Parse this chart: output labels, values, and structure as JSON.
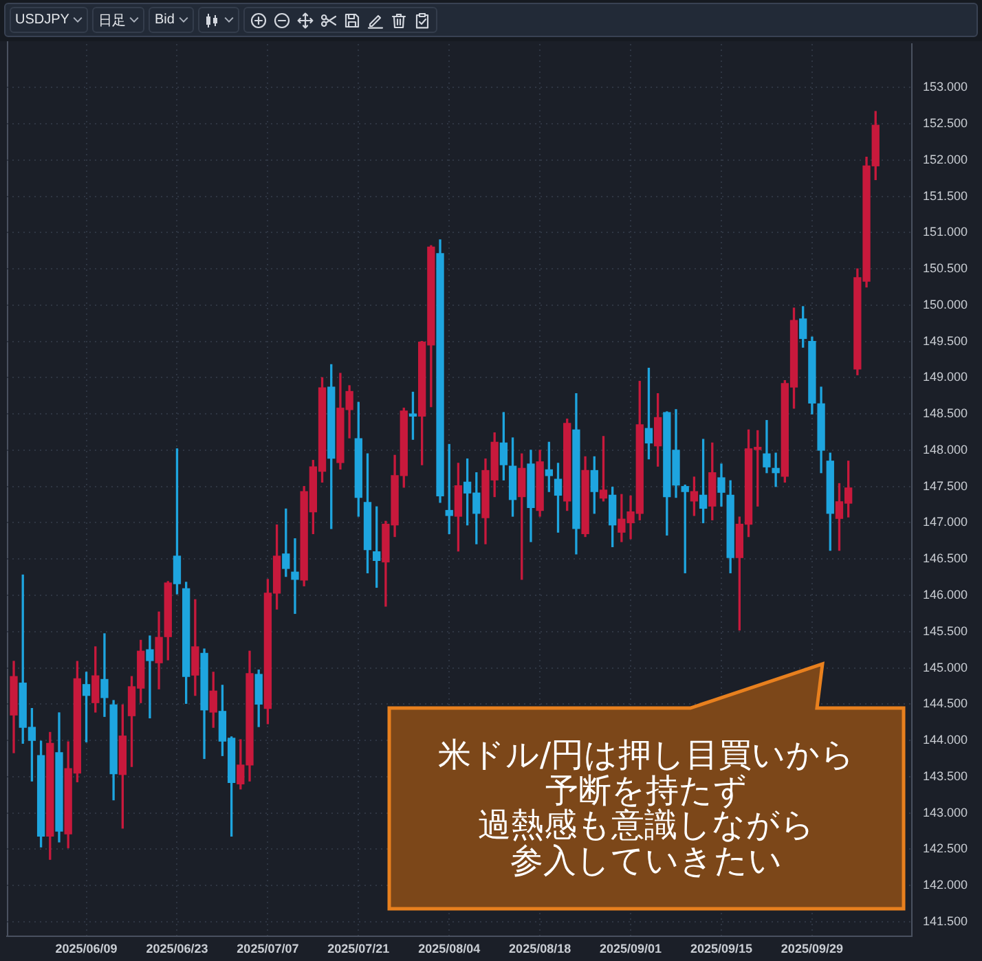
{
  "chart_data": {
    "type": "candlestick",
    "title": "USDJPY",
    "annotations": [
      "日足",
      "Bid",
      "米ドル/円は押し目買いから",
      "予断を持たず",
      "過熱感も意識しながら",
      "参入していきたい"
    ],
    "categories": [
      null,
      null,
      null,
      null,
      null,
      null,
      null,
      null,
      "2025/06/09",
      null,
      null,
      null,
      null,
      null,
      null,
      null,
      null,
      null,
      "2025/06/23",
      null,
      null,
      null,
      null,
      null,
      null,
      null,
      null,
      null,
      "2025/07/07",
      null,
      null,
      null,
      null,
      null,
      null,
      null,
      null,
      null,
      "2025/07/21",
      null,
      null,
      null,
      null,
      null,
      null,
      null,
      null,
      null,
      "2025/08/04",
      null,
      null,
      null,
      null,
      null,
      null,
      null,
      null,
      null,
      "2025/08/18",
      null,
      null,
      null,
      null,
      null,
      null,
      null,
      null,
      null,
      "2025/09/01",
      null,
      null,
      null,
      null,
      null,
      null,
      null,
      null,
      null,
      "2025/09/15",
      null,
      null,
      null,
      null,
      null,
      null,
      null,
      null,
      null,
      "2025/09/29",
      null,
      null,
      null,
      null,
      null,
      null,
      null
    ],
    "ohlc": [
      [
        144.35,
        145.09,
        143.83,
        144.88
      ],
      [
        144.79,
        146.28,
        143.96,
        144.18
      ],
      [
        144.18,
        144.44,
        143.44,
        144.0
      ],
      [
        143.79,
        143.99,
        142.53,
        142.68
      ],
      [
        142.68,
        144.11,
        142.36,
        143.96
      ],
      [
        143.83,
        144.38,
        142.6,
        142.75
      ],
      [
        142.71,
        143.98,
        142.52,
        143.61
      ],
      [
        143.55,
        145.09,
        143.43,
        144.85
      ],
      [
        144.77,
        144.94,
        143.98,
        144.62
      ],
      [
        144.52,
        145.29,
        144.39,
        144.89
      ],
      [
        144.84,
        145.47,
        144.33,
        144.59
      ],
      [
        144.49,
        144.55,
        143.18,
        143.54
      ],
      [
        143.53,
        144.49,
        142.79,
        144.06
      ],
      [
        144.34,
        144.88,
        143.64,
        144.74
      ],
      [
        144.72,
        145.38,
        144.52,
        145.23
      ],
      [
        145.25,
        145.44,
        144.31,
        145.1
      ],
      [
        145.07,
        145.77,
        144.71,
        145.42
      ],
      [
        145.43,
        146.19,
        145.11,
        146.17
      ],
      [
        146.54,
        148.02,
        146.02,
        146.16
      ],
      [
        146.09,
        146.18,
        144.51,
        144.88
      ],
      [
        144.9,
        145.94,
        144.62,
        145.29
      ],
      [
        145.2,
        145.26,
        143.75,
        144.42
      ],
      [
        144.39,
        144.94,
        144.18,
        144.68
      ],
      [
        144.4,
        144.76,
        143.79,
        143.99
      ],
      [
        144.03,
        144.05,
        142.68,
        143.42
      ],
      [
        143.4,
        144.01,
        143.33,
        143.66
      ],
      [
        143.66,
        145.23,
        143.44,
        144.92
      ],
      [
        144.91,
        144.97,
        144.19,
        144.5
      ],
      [
        144.44,
        146.22,
        144.23,
        146.03
      ],
      [
        146.03,
        146.97,
        145.81,
        146.54
      ],
      [
        146.57,
        147.19,
        146.26,
        146.37
      ],
      [
        146.32,
        146.78,
        145.75,
        146.22
      ],
      [
        146.21,
        147.5,
        146.13,
        147.43
      ],
      [
        147.15,
        147.86,
        146.85,
        147.77
      ],
      [
        147.71,
        149.0,
        147.56,
        148.86
      ],
      [
        148.87,
        149.18,
        146.92,
        147.89
      ],
      [
        147.83,
        149.06,
        147.74,
        148.58
      ],
      [
        148.56,
        148.89,
        148.17,
        148.81
      ],
      [
        148.16,
        148.66,
        147.09,
        147.35
      ],
      [
        147.28,
        147.95,
        146.31,
        146.63
      ],
      [
        146.6,
        147.22,
        146.11,
        146.48
      ],
      [
        146.46,
        147.02,
        145.85,
        146.98
      ],
      [
        146.97,
        147.93,
        146.81,
        147.65
      ],
      [
        147.65,
        148.58,
        147.49,
        148.54
      ],
      [
        148.5,
        148.8,
        148.15,
        148.47
      ],
      [
        148.47,
        149.5,
        147.8,
        149.49
      ],
      [
        149.45,
        150.82,
        148.6,
        150.8
      ],
      [
        150.71,
        150.9,
        147.28,
        147.37
      ],
      [
        147.17,
        148.08,
        146.85,
        147.1
      ],
      [
        147.09,
        147.82,
        146.61,
        147.51
      ],
      [
        147.56,
        147.88,
        146.97,
        147.41
      ],
      [
        147.41,
        147.69,
        146.71,
        147.13
      ],
      [
        147.07,
        147.88,
        146.71,
        147.72
      ],
      [
        147.59,
        148.24,
        147.36,
        148.11
      ],
      [
        148.1,
        148.52,
        147.59,
        147.8
      ],
      [
        147.78,
        148.17,
        147.09,
        147.32
      ],
      [
        147.36,
        147.95,
        146.22,
        147.75
      ],
      [
        147.81,
        148.0,
        146.74,
        147.21
      ],
      [
        147.17,
        148.0,
        147.09,
        147.84
      ],
      [
        147.73,
        148.11,
        147.43,
        147.65
      ],
      [
        147.6,
        147.82,
        146.87,
        147.38
      ],
      [
        147.3,
        148.43,
        147.17,
        148.37
      ],
      [
        148.28,
        148.78,
        146.57,
        146.92
      ],
      [
        146.85,
        147.91,
        146.81,
        147.72
      ],
      [
        147.72,
        147.91,
        147.13,
        147.43
      ],
      [
        147.34,
        148.19,
        147.3,
        147.45
      ],
      [
        147.38,
        147.49,
        146.67,
        146.97
      ],
      [
        146.87,
        147.39,
        146.74,
        147.05
      ],
      [
        147.0,
        147.37,
        146.78,
        147.15
      ],
      [
        147.13,
        148.95,
        147.04,
        148.35
      ],
      [
        148.3,
        149.13,
        147.88,
        148.1
      ],
      [
        148.06,
        148.78,
        147.78,
        148.45
      ],
      [
        148.52,
        148.53,
        146.83,
        147.36
      ],
      [
        148.0,
        148.56,
        147.35,
        147.52
      ],
      [
        147.5,
        147.52,
        146.31,
        147.43
      ],
      [
        147.3,
        147.63,
        147.1,
        147.43
      ],
      [
        147.38,
        148.15,
        147.0,
        147.2
      ],
      [
        147.23,
        148.1,
        147.04,
        147.69
      ],
      [
        147.62,
        147.81,
        147.23,
        147.42
      ],
      [
        147.38,
        147.58,
        146.31,
        146.52
      ],
      [
        146.52,
        147.08,
        145.52,
        146.98
      ],
      [
        146.98,
        148.28,
        146.81,
        148.02
      ],
      [
        148.01,
        148.27,
        147.23,
        148.04
      ],
      [
        147.95,
        148.41,
        147.69,
        147.77
      ],
      [
        147.75,
        147.96,
        147.5,
        147.69
      ],
      [
        147.64,
        148.96,
        147.56,
        148.92
      ],
      [
        148.87,
        149.96,
        148.58,
        149.79
      ],
      [
        149.81,
        149.98,
        149.42,
        149.54
      ],
      [
        149.5,
        149.56,
        148.5,
        148.65
      ],
      [
        148.64,
        148.87,
        147.69,
        148.0
      ],
      [
        147.85,
        147.96,
        146.62,
        147.13
      ],
      [
        147.06,
        147.54,
        146.62,
        147.29
      ],
      [
        147.27,
        147.85,
        147.08,
        147.48
      ],
      [
        149.12,
        150.5,
        149.04,
        150.38
      ],
      [
        150.33,
        152.04,
        150.25,
        151.92
      ],
      [
        151.92,
        152.67,
        151.73,
        152.48
      ]
    ],
    "colors": [
      "#c8193c",
      "#1ea5df",
      "#1ea5df",
      "#1ea5df",
      "#c8193c",
      "#1ea5df",
      "#c8193c",
      "#c8193c",
      "#1ea5df",
      "#c8193c",
      "#1ea5df",
      "#1ea5df",
      "#c8193c",
      "#c8193c",
      "#c8193c",
      "#1ea5df",
      "#c8193c",
      "#c8193c",
      "#1ea5df",
      "#1ea5df",
      "#c8193c",
      "#1ea5df",
      "#c8193c",
      "#1ea5df",
      "#1ea5df",
      "#c8193c",
      "#c8193c",
      "#1ea5df",
      "#c8193c",
      "#c8193c",
      "#1ea5df",
      "#1ea5df",
      "#c8193c",
      "#c8193c",
      "#c8193c",
      "#1ea5df",
      "#c8193c",
      "#c8193c",
      "#1ea5df",
      "#1ea5df",
      "#1ea5df",
      "#c8193c",
      "#c8193c",
      "#c8193c",
      "#1ea5df",
      "#c8193c",
      "#c8193c",
      "#1ea5df",
      "#1ea5df",
      "#c8193c",
      "#1ea5df",
      "#1ea5df",
      "#c8193c",
      "#c8193c",
      "#1ea5df",
      "#1ea5df",
      "#c8193c",
      "#1ea5df",
      "#c8193c",
      "#1ea5df",
      "#1ea5df",
      "#c8193c",
      "#1ea5df",
      "#c8193c",
      "#1ea5df",
      "#c8193c",
      "#1ea5df",
      "#c8193c",
      "#c8193c",
      "#c8193c",
      "#1ea5df",
      "#c8193c",
      "#1ea5df",
      "#1ea5df",
      "#1ea5df",
      "#c8193c",
      "#1ea5df",
      "#c8193c",
      "#1ea5df",
      "#1ea5df",
      "#c8193c",
      "#c8193c",
      "#c8193c",
      "#1ea5df",
      "#1ea5df",
      "#c8193c",
      "#c8193c",
      "#1ea5df",
      "#1ea5df",
      "#1ea5df",
      "#1ea5df",
      "#c8193c",
      "#c8193c",
      "#c8193c",
      "#c8193c",
      "#c8193c"
    ],
    "ylim": [
      141.3,
      153.6
    ],
    "yticks": [
      {
        "value": 141.5,
        "label": "141.500"
      },
      {
        "value": 142,
        "label": "142.000"
      },
      {
        "value": 142.5,
        "label": "142.500"
      },
      {
        "value": 143,
        "label": "143.000"
      },
      {
        "value": 143.5,
        "label": "143.500"
      },
      {
        "value": 144,
        "label": "144.000"
      },
      {
        "value": 144.5,
        "label": "144.500"
      },
      {
        "value": 145,
        "label": "145.000"
      },
      {
        "value": 145.5,
        "label": "145.500"
      },
      {
        "value": 146,
        "label": "146.000"
      },
      {
        "value": 146.5,
        "label": "146.500"
      },
      {
        "value": 147,
        "label": "147.000"
      },
      {
        "value": 147.5,
        "label": "147.500"
      },
      {
        "value": 148,
        "label": "148.000"
      },
      {
        "value": 148.5,
        "label": "148.500"
      },
      {
        "value": 149,
        "label": "149.000"
      },
      {
        "value": 149.5,
        "label": "149.500"
      },
      {
        "value": 150,
        "label": "150.000"
      },
      {
        "value": 150.5,
        "label": "150.500"
      },
      {
        "value": 151,
        "label": "151.000"
      },
      {
        "value": 151.5,
        "label": "151.500"
      },
      {
        "value": 152,
        "label": "152.000"
      },
      {
        "value": 152.5,
        "label": "152.500"
      },
      {
        "value": 153,
        "label": "153.000"
      }
    ],
    "grid": true
  }
}
